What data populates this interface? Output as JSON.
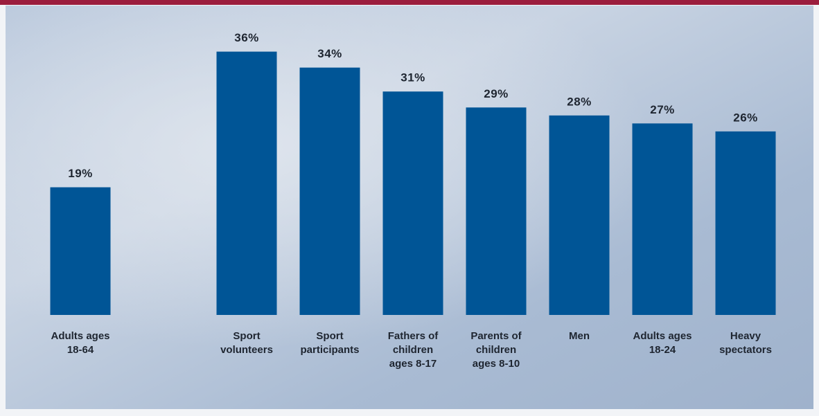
{
  "chart_data": {
    "type": "bar",
    "categories": [
      "Adults ages\n18-64",
      "Sport\nvolunteers",
      "Sport\nparticipants",
      "Fathers of\nchildren\nages 8-17",
      "Parents of\nchildren\nages 8-10",
      "Men",
      "Adults ages\n18-24",
      "Heavy\nspectators"
    ],
    "values": [
      19,
      36,
      34,
      31,
      29,
      28,
      27,
      26
    ],
    "value_labels": [
      "19%",
      "36%",
      "34%",
      "31%",
      "29%",
      "28%",
      "27%",
      "26%"
    ],
    "color": "#005596",
    "ylim": [
      3,
      39
    ]
  }
}
